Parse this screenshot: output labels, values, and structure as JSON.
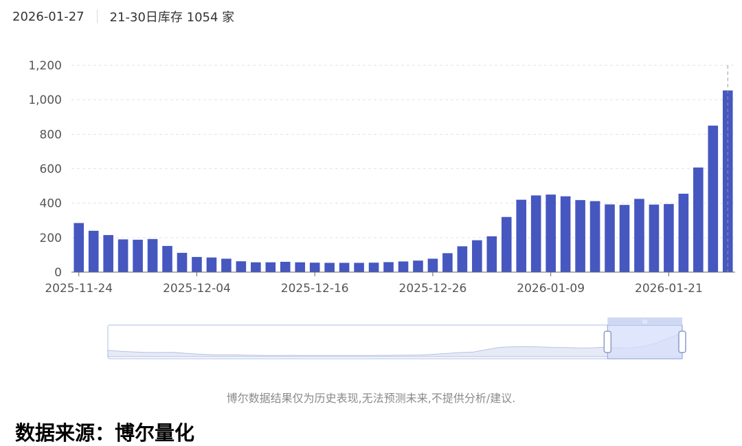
{
  "header": {
    "date": "2026-01-27",
    "summary": "21-30日库存 1054 家"
  },
  "chart_data": {
    "type": "bar",
    "color": "#4657c0",
    "ylim": [
      0,
      1200
    ],
    "yticks": [
      "0",
      "200",
      "400",
      "600",
      "800",
      "1,000",
      "1,200"
    ],
    "ytick_values": [
      0,
      200,
      400,
      600,
      800,
      1000,
      1200
    ],
    "xtick_labels": [
      {
        "index": 0,
        "label": "2025-11-24"
      },
      {
        "index": 8,
        "label": "2025-12-04"
      },
      {
        "index": 16,
        "label": "2025-12-16"
      },
      {
        "index": 24,
        "label": "2025-12-26"
      },
      {
        "index": 32,
        "label": "2026-01-09"
      },
      {
        "index": 40,
        "label": "2026-01-21"
      }
    ],
    "values": [
      285,
      240,
      215,
      190,
      188,
      192,
      152,
      112,
      88,
      85,
      78,
      63,
      57,
      57,
      60,
      57,
      55,
      54,
      54,
      54,
      55,
      58,
      62,
      67,
      78,
      110,
      150,
      185,
      208,
      320,
      420,
      445,
      450,
      440,
      418,
      412,
      393,
      390,
      425,
      392,
      395,
      455,
      607,
      850,
      1054
    ],
    "grid": true,
    "highlight_last": true,
    "datazoom": {
      "window_start": 0.87,
      "window_end": 1.0,
      "handle_label": "III"
    }
  },
  "footer": {
    "disclaimer": "博尔数据结果仅为历史表现,无法预测未来,不提供分析/建议.",
    "source": "数据来源：博尔量化"
  }
}
